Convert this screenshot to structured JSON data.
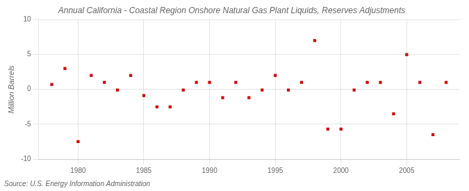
{
  "chart_data": {
    "type": "scatter",
    "title": "Annual California - Coastal Region Onshore Natural Gas Plant Liquids, Reserves Adjustments",
    "ylabel": "Million Barrels",
    "source": "Source: U.S. Energy Information Administration",
    "x": [
      1978,
      1979,
      1980,
      1981,
      1982,
      1983,
      1984,
      1985,
      1986,
      1987,
      1988,
      1989,
      1990,
      1991,
      1992,
      1993,
      1994,
      1995,
      1996,
      1997,
      1998,
      1999,
      2000,
      2001,
      2002,
      2003,
      2004,
      2005,
      2006,
      2007,
      2008
    ],
    "values": [
      0.7,
      3.0,
      -7.5,
      2.0,
      1.0,
      -0.1,
      2.0,
      -0.9,
      -2.5,
      -2.5,
      -0.1,
      1.0,
      1.0,
      -1.2,
      1.0,
      -1.2,
      -0.1,
      2.0,
      -0.1,
      1.0,
      7.0,
      -5.7,
      -5.7,
      -0.1,
      1.0,
      1.0,
      -3.5,
      5.0,
      1.0,
      -6.5,
      1.0
    ],
    "color": "#cc0000",
    "marker": "square",
    "xlim": [
      1977,
      2009
    ],
    "ylim": [
      -10,
      10
    ],
    "xticks": [
      1980,
      1985,
      1990,
      1995,
      2000,
      2005
    ],
    "yticks": [
      -10,
      -5,
      0,
      5,
      10
    ],
    "grid": true
  }
}
